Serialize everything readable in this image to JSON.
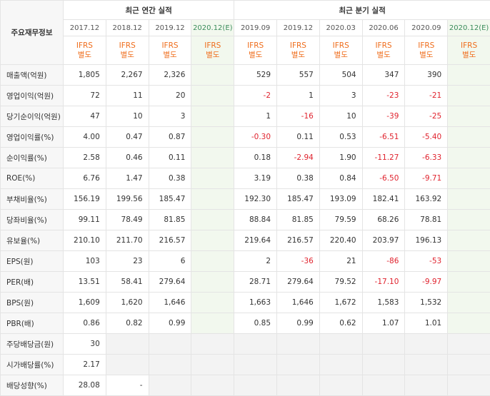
{
  "table": {
    "corner": "주요재무정보",
    "groups": [
      {
        "label": "최근 연간 실적",
        "span": 4
      },
      {
        "label": "최근 분기 실적",
        "span": 6
      }
    ],
    "columns": [
      {
        "period": "2017.12",
        "standard": "IFRS",
        "basis": "별도"
      },
      {
        "period": "2018.12",
        "standard": "IFRS",
        "basis": "별도"
      },
      {
        "period": "2019.12",
        "standard": "IFRS",
        "basis": "별도"
      },
      {
        "period": "2020.12(E)",
        "standard": "IFRS",
        "basis": "별도",
        "estimate": true
      },
      {
        "period": "2019.09",
        "standard": "IFRS",
        "basis": "별도"
      },
      {
        "period": "2019.12",
        "standard": "IFRS",
        "basis": "별도"
      },
      {
        "period": "2020.03",
        "standard": "IFRS",
        "basis": "별도"
      },
      {
        "period": "2020.06",
        "standard": "IFRS",
        "basis": "별도"
      },
      {
        "period": "2020.09",
        "standard": "IFRS",
        "basis": "별도"
      },
      {
        "period": "2020.12(E)",
        "standard": "IFRS",
        "basis": "별도",
        "estimate": true
      }
    ],
    "rows": [
      {
        "label": "매출액(억원)",
        "cells": [
          "1,805",
          "2,267",
          "2,326",
          null,
          "529",
          "557",
          "504",
          "347",
          "390",
          null
        ]
      },
      {
        "label": "영업이익(억원)",
        "cells": [
          "72",
          "11",
          "20",
          null,
          "-2",
          "1",
          "3",
          "-23",
          "-21",
          null
        ]
      },
      {
        "label": "당기순이익(억원)",
        "cells": [
          "47",
          "10",
          "3",
          null,
          "1",
          "-16",
          "10",
          "-39",
          "-25",
          null
        ]
      },
      {
        "label": "영업이익률(%)",
        "cells": [
          "4.00",
          "0.47",
          "0.87",
          null,
          "-0.30",
          "0.11",
          "0.53",
          "-6.51",
          "-5.40",
          null
        ]
      },
      {
        "label": "순이익률(%)",
        "cells": [
          "2.58",
          "0.46",
          "0.11",
          null,
          "0.18",
          "-2.94",
          "1.90",
          "-11.27",
          "-6.33",
          null
        ]
      },
      {
        "label": "ROE(%)",
        "cells": [
          "6.76",
          "1.47",
          "0.38",
          null,
          "3.19",
          "0.38",
          "0.84",
          "-6.50",
          "-9.71",
          null
        ]
      },
      {
        "label": "부채비율(%)",
        "cells": [
          "156.19",
          "199.56",
          "185.47",
          null,
          "192.30",
          "185.47",
          "193.09",
          "182.41",
          "163.92",
          null
        ]
      },
      {
        "label": "당좌비율(%)",
        "cells": [
          "99.11",
          "78.49",
          "81.85",
          null,
          "88.84",
          "81.85",
          "79.59",
          "68.26",
          "78.81",
          null
        ]
      },
      {
        "label": "유보율(%)",
        "cells": [
          "210.10",
          "211.70",
          "216.57",
          null,
          "219.64",
          "216.57",
          "220.40",
          "203.97",
          "196.13",
          null
        ]
      },
      {
        "label": "EPS(원)",
        "cells": [
          "103",
          "23",
          "6",
          null,
          "2",
          "-36",
          "21",
          "-86",
          "-53",
          null
        ]
      },
      {
        "label": "PER(배)",
        "cells": [
          "13.51",
          "58.41",
          "279.64",
          null,
          "28.71",
          "279.64",
          "79.52",
          "-17.10",
          "-9.97",
          null
        ]
      },
      {
        "label": "BPS(원)",
        "cells": [
          "1,609",
          "1,620",
          "1,646",
          null,
          "1,663",
          "1,646",
          "1,672",
          "1,583",
          "1,532",
          null
        ]
      },
      {
        "label": "PBR(배)",
        "cells": [
          "0.86",
          "0.82",
          "0.99",
          null,
          "0.85",
          "0.99",
          "0.62",
          "1.07",
          "1.01",
          null
        ]
      },
      {
        "label": "주당배당금(원)",
        "cells": [
          "30"
        ]
      },
      {
        "label": "시가배당률(%)",
        "cells": [
          "2.17"
        ]
      },
      {
        "label": "배당성향(%)",
        "cells": [
          "28.08",
          "-"
        ]
      }
    ]
  }
}
